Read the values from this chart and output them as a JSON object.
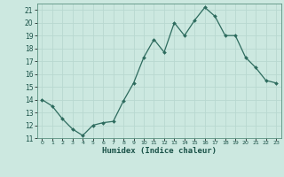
{
  "x": [
    0,
    1,
    2,
    3,
    4,
    5,
    6,
    7,
    8,
    9,
    10,
    11,
    12,
    13,
    14,
    15,
    16,
    17,
    18,
    19,
    20,
    21,
    22,
    23
  ],
  "y": [
    14.0,
    13.5,
    12.5,
    11.7,
    11.2,
    12.0,
    12.2,
    12.3,
    13.9,
    15.3,
    17.3,
    18.7,
    17.7,
    20.0,
    19.0,
    20.2,
    21.2,
    20.5,
    19.0,
    19.0,
    17.3,
    16.5,
    15.5,
    15.3
  ],
  "xlabel": "Humidex (Indice chaleur)",
  "xlim": [
    -0.5,
    23.5
  ],
  "ylim": [
    11,
    21.5
  ],
  "yticks": [
    11,
    12,
    13,
    14,
    15,
    16,
    17,
    18,
    19,
    20,
    21
  ],
  "xticks": [
    0,
    1,
    2,
    3,
    4,
    5,
    6,
    7,
    8,
    9,
    10,
    11,
    12,
    13,
    14,
    15,
    16,
    17,
    18,
    19,
    20,
    21,
    22,
    23
  ],
  "line_color": "#2d6b5e",
  "marker": "D",
  "marker_size": 2.0,
  "bg_color": "#cce8e0",
  "grid_color": "#b8d8d0",
  "font_color": "#1a5248"
}
